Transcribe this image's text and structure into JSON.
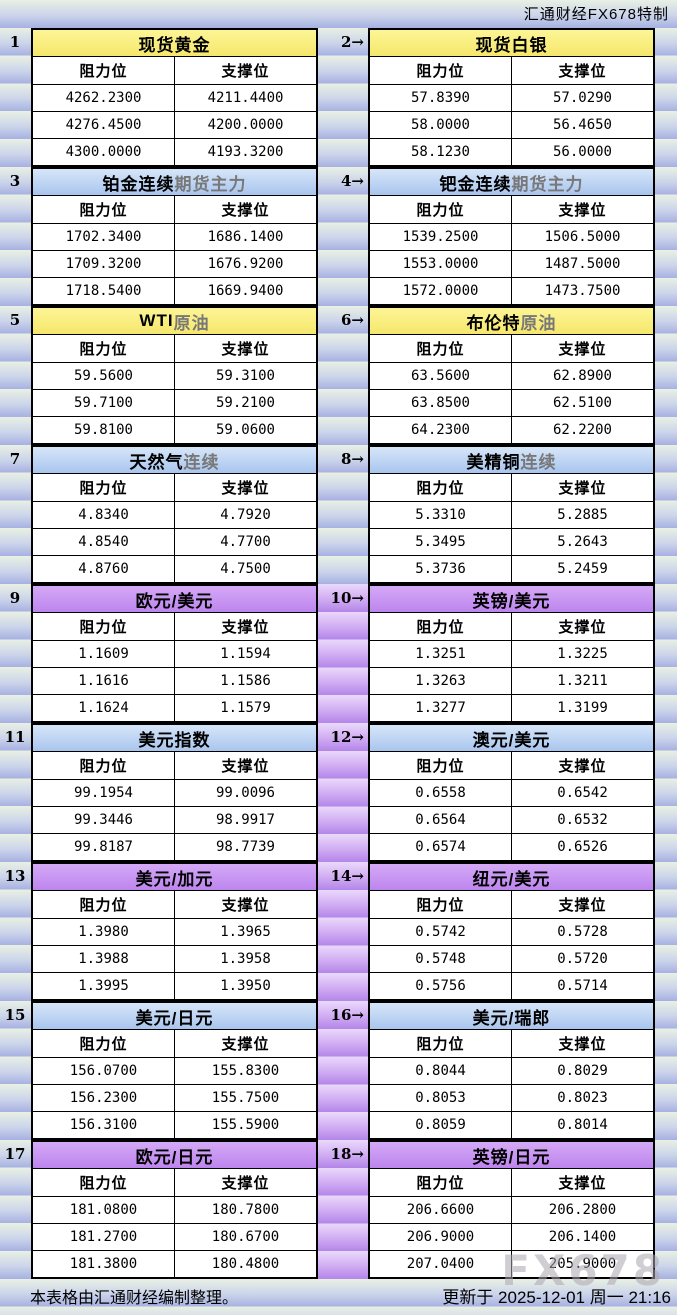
{
  "header": {
    "brand": "汇通财经FX678特制"
  },
  "footer": {
    "note": "本表格由汇通财经编制整理。",
    "updated": "更新于 2025-12-01 周一 21:16",
    "watermark": "FX678"
  },
  "colors": {
    "yellow_header": "#f9ee7d",
    "blue_header": "#b3cdf2",
    "purple_header": "#c795f1",
    "purple_gutter": "#c59cee",
    "background_stripe_light": "#e9f0e4",
    "background_stripe_dark": "#a7b1e2"
  },
  "chart_data": {
    "type": "table",
    "col_headers": [
      "阻力位",
      "支撑位"
    ],
    "tables": [
      {
        "label": "1",
        "title_main": "现货黄金",
        "title_sub": "",
        "theme": "yellow",
        "rows": [
          [
            "4262.2300",
            "4211.4400"
          ],
          [
            "4276.4500",
            "4200.0000"
          ],
          [
            "4300.0000",
            "4193.3200"
          ]
        ]
      },
      {
        "label": "2→",
        "title_main": "现货白银",
        "title_sub": "",
        "theme": "yellow",
        "rows": [
          [
            "57.8390",
            "57.0290"
          ],
          [
            "58.0000",
            "56.4650"
          ],
          [
            "58.1230",
            "56.0000"
          ]
        ]
      },
      {
        "label": "3",
        "title_main": "铂金连续",
        "title_sub": "期货主力",
        "theme": "blue",
        "rows": [
          [
            "1702.3400",
            "1686.1400"
          ],
          [
            "1709.3200",
            "1676.9200"
          ],
          [
            "1718.5400",
            "1669.9400"
          ]
        ]
      },
      {
        "label": "4→",
        "title_main": "钯金连续",
        "title_sub": "期货主力",
        "theme": "blue",
        "rows": [
          [
            "1539.2500",
            "1506.5000"
          ],
          [
            "1553.0000",
            "1487.5000"
          ],
          [
            "1572.0000",
            "1473.7500"
          ]
        ]
      },
      {
        "label": "5",
        "title_main": "WTI",
        "title_sub": "原油",
        "theme": "yellow",
        "rows": [
          [
            "59.5600",
            "59.3100"
          ],
          [
            "59.7100",
            "59.2100"
          ],
          [
            "59.8100",
            "59.0600"
          ]
        ]
      },
      {
        "label": "6→",
        "title_main": "布伦特",
        "title_sub": "原油",
        "theme": "yellow",
        "rows": [
          [
            "63.5600",
            "62.8900"
          ],
          [
            "63.8500",
            "62.5100"
          ],
          [
            "64.2300",
            "62.2200"
          ]
        ]
      },
      {
        "label": "7",
        "title_main": "天然气",
        "title_sub": "连续",
        "theme": "blue",
        "rows": [
          [
            "4.8340",
            "4.7920"
          ],
          [
            "4.8540",
            "4.7700"
          ],
          [
            "4.8760",
            "4.7500"
          ]
        ]
      },
      {
        "label": "8→",
        "title_main": "美精铜",
        "title_sub": "连续",
        "theme": "blue",
        "rows": [
          [
            "5.3310",
            "5.2885"
          ],
          [
            "5.3495",
            "5.2643"
          ],
          [
            "5.3736",
            "5.2459"
          ]
        ]
      },
      {
        "label": "9",
        "title_main": "欧元/美元",
        "title_sub": "",
        "theme": "purple",
        "rows": [
          [
            "1.1609",
            "1.1594"
          ],
          [
            "1.1616",
            "1.1586"
          ],
          [
            "1.1624",
            "1.1579"
          ]
        ]
      },
      {
        "label": "10→",
        "title_main": "英镑/美元",
        "title_sub": "",
        "theme": "purple",
        "rows": [
          [
            "1.3251",
            "1.3225"
          ],
          [
            "1.3263",
            "1.3211"
          ],
          [
            "1.3277",
            "1.3199"
          ]
        ]
      },
      {
        "label": "11",
        "title_main": "美元指数",
        "title_sub": "",
        "theme": "blue",
        "rows": [
          [
            "99.1954",
            "99.0096"
          ],
          [
            "99.3446",
            "98.9917"
          ],
          [
            "99.8187",
            "98.7739"
          ]
        ]
      },
      {
        "label": "12→",
        "title_main": "澳元/美元",
        "title_sub": "",
        "theme": "blue",
        "rows": [
          [
            "0.6558",
            "0.6542"
          ],
          [
            "0.6564",
            "0.6532"
          ],
          [
            "0.6574",
            "0.6526"
          ]
        ]
      },
      {
        "label": "13",
        "title_main": "美元/加元",
        "title_sub": "",
        "theme": "purple",
        "rows": [
          [
            "1.3980",
            "1.3965"
          ],
          [
            "1.3988",
            "1.3958"
          ],
          [
            "1.3995",
            "1.3950"
          ]
        ]
      },
      {
        "label": "14→",
        "title_main": "纽元/美元",
        "title_sub": "",
        "theme": "purple",
        "rows": [
          [
            "0.5742",
            "0.5728"
          ],
          [
            "0.5748",
            "0.5720"
          ],
          [
            "0.5756",
            "0.5714"
          ]
        ]
      },
      {
        "label": "15",
        "title_main": "美元/日元",
        "title_sub": "",
        "theme": "blue",
        "rows": [
          [
            "156.0700",
            "155.8300"
          ],
          [
            "156.2300",
            "155.7500"
          ],
          [
            "156.3100",
            "155.5900"
          ]
        ]
      },
      {
        "label": "16→",
        "title_main": "美元/瑞郎",
        "title_sub": "",
        "theme": "blue",
        "rows": [
          [
            "0.8044",
            "0.8029"
          ],
          [
            "0.8053",
            "0.8023"
          ],
          [
            "0.8059",
            "0.8014"
          ]
        ]
      },
      {
        "label": "17",
        "title_main": "欧元/日元",
        "title_sub": "",
        "theme": "purple",
        "rows": [
          [
            "181.0800",
            "180.7800"
          ],
          [
            "181.2700",
            "180.6700"
          ],
          [
            "181.3800",
            "180.4800"
          ]
        ]
      },
      {
        "label": "18→",
        "title_main": "英镑/日元",
        "title_sub": "",
        "theme": "purple",
        "rows": [
          [
            "206.6600",
            "206.2800"
          ],
          [
            "206.9000",
            "206.1400"
          ],
          [
            "207.0400",
            "205.9000"
          ]
        ]
      }
    ]
  }
}
